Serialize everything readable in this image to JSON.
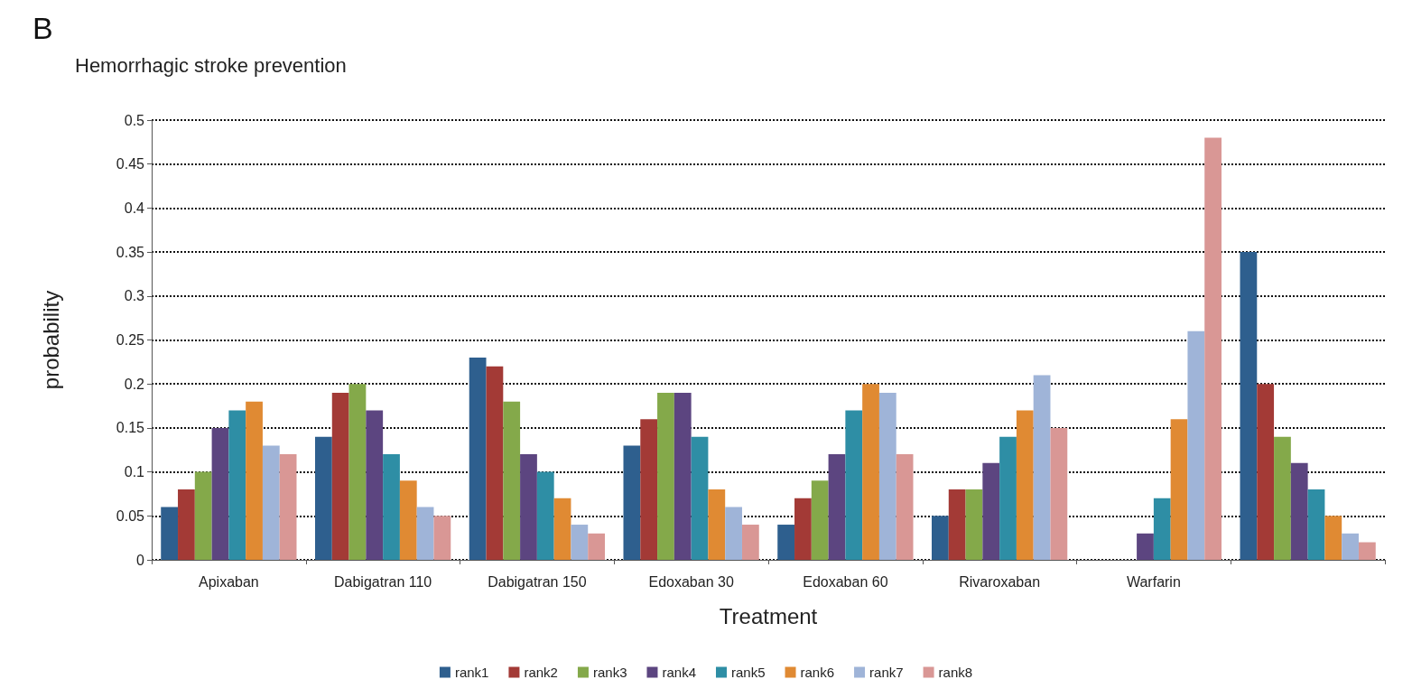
{
  "chart_data": {
    "type": "bar",
    "title": "Hemorrhagic stroke prevention",
    "xlabel": "Treatment",
    "ylabel": "probability",
    "annotations": [
      "B"
    ],
    "categories": [
      "Apixaban",
      "Dabigatran 110",
      "Dabigatran 150",
      "Edoxaban 30",
      "Edoxaban 60",
      "Rivaroxaban",
      "Warfarin",
      null
    ],
    "series": [
      {
        "name": "rank1",
        "color": "#2e5f8e",
        "values": [
          0.06,
          0.14,
          0.23,
          0.13,
          0.04,
          0.05,
          0,
          0.35
        ]
      },
      {
        "name": "rank2",
        "color": "#a33a36",
        "values": [
          0.08,
          0.19,
          0.22,
          0.16,
          0.07,
          0.08,
          0,
          0.2
        ]
      },
      {
        "name": "rank3",
        "color": "#84a94a",
        "values": [
          0.1,
          0.2,
          0.18,
          0.19,
          0.09,
          0.08,
          0,
          0.14
        ]
      },
      {
        "name": "rank4",
        "color": "#5c4580",
        "values": [
          0.15,
          0.17,
          0.12,
          0.19,
          0.12,
          0.11,
          0.03,
          0.11
        ]
      },
      {
        "name": "rank5",
        "color": "#2e8ea5",
        "values": [
          0.17,
          0.12,
          0.1,
          0.14,
          0.17,
          0.14,
          0.07,
          0.08
        ]
      },
      {
        "name": "rank6",
        "color": "#e08a33",
        "values": [
          0.18,
          0.09,
          0.07,
          0.08,
          0.2,
          0.17,
          0.16,
          0.05
        ]
      },
      {
        "name": "rank7",
        "color": "#9fb4d8",
        "values": [
          0.13,
          0.06,
          0.04,
          0.06,
          0.19,
          0.21,
          0.26,
          0.03
        ]
      },
      {
        "name": "rank8",
        "color": "#d99795",
        "values": [
          0.12,
          0.05,
          0.03,
          0.04,
          0.12,
          0.15,
          0.48,
          0.02
        ]
      }
    ],
    "ylim": [
      0,
      0.5
    ],
    "yticks": [
      0,
      0.05,
      0.1,
      0.15,
      0.2,
      0.25,
      0.3,
      0.35,
      0.4,
      0.45,
      0.5
    ],
    "grid": "y",
    "legend": "bottom"
  }
}
